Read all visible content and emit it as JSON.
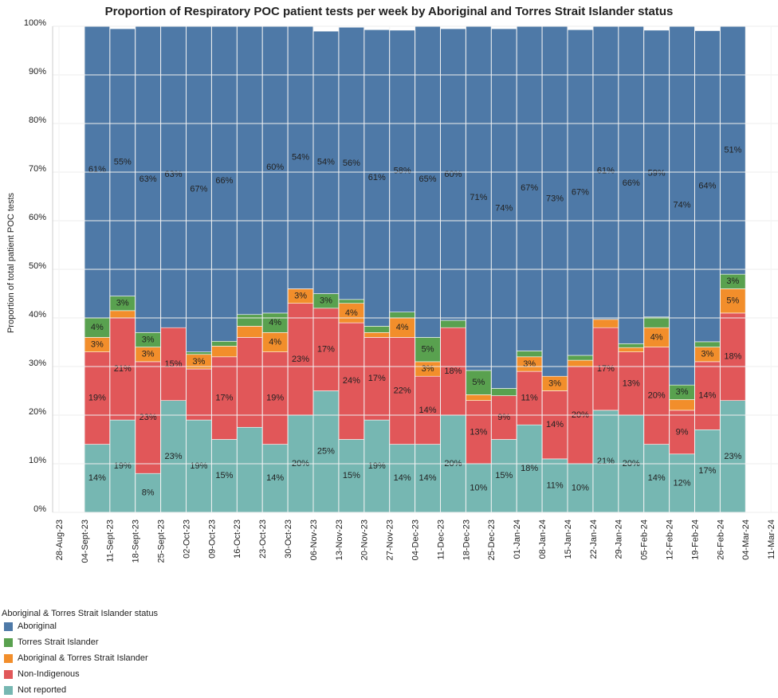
{
  "chart_data": {
    "type": "stacked-bar",
    "title": "Proportion of Respiratory POC patient tests per week by Aboriginal and Torres Strait Islander status",
    "y_label": "Proportion of total patient POC tests",
    "legend_title": "Aboriginal & Torres Strait Islander status",
    "x": [
      "28-Aug-23",
      "04-Sept-23",
      "11-Sept-23",
      "18-Sept-23",
      "25-Sept-23",
      "02-Oct-23",
      "09-Oct-23",
      "16-Oct-23",
      "23-Oct-23",
      "30-Oct-23",
      "06-Nov-23",
      "13-Nov-23",
      "20-Nov-23",
      "27-Nov-23",
      "04-Dec-23",
      "11-Dec-23",
      "18-Dec-23",
      "25-Dec-23",
      "01-Jan-24",
      "08-Jan-24",
      "15-Jan-24",
      "22-Jan-24",
      "29-Jan-24",
      "05-Feb-24",
      "12-Feb-24",
      "19-Feb-24",
      "26-Feb-24",
      "04-Mar-24",
      "11-Mar-24"
    ],
    "ylim": [
      0,
      100
    ],
    "yticks": [
      {
        "value": 0,
        "label": "0%"
      },
      {
        "value": 10,
        "label": "10%"
      },
      {
        "value": 20,
        "label": "20%"
      },
      {
        "value": 30,
        "label": "30%"
      },
      {
        "value": 40,
        "label": "40%"
      },
      {
        "value": 50,
        "label": "50%"
      },
      {
        "value": 60,
        "label": "60%"
      },
      {
        "value": 70,
        "label": "70%"
      },
      {
        "value": 80,
        "label": "80%"
      },
      {
        "value": 90,
        "label": "90%"
      },
      {
        "value": 100,
        "label": "100%"
      }
    ],
    "grid": true,
    "series": [
      {
        "name": "Aboriginal",
        "color": "#4e79a7",
        "values": [
          null,
          61,
          55,
          63,
          63,
          67,
          66,
          59.3,
          60,
          54,
          54,
          56,
          61,
          58,
          65,
          60,
          71,
          74,
          67,
          73,
          67,
          61,
          66,
          59,
          74,
          64,
          51,
          null,
          null
        ],
        "value_labels": [
          null,
          "61%",
          "55%",
          "63%",
          "63%",
          "67%",
          "66%",
          null,
          "60%",
          "54%",
          "54%",
          "56%",
          "61%",
          "58%",
          "65%",
          "60%",
          "71%",
          "74%",
          "67%",
          "73%",
          "67%",
          "61%",
          "66%",
          "59%",
          "74%",
          "64%",
          "51%",
          null,
          null
        ]
      },
      {
        "name": "Torres Strait Islander",
        "color": "#59a14f",
        "values": [
          null,
          4,
          3,
          3,
          0,
          0.5,
          1,
          2.4,
          4,
          0,
          3,
          0.8,
          1.3,
          1.2,
          5,
          1.5,
          5,
          1.5,
          1.2,
          0,
          1,
          0,
          0.8,
          2.2,
          3,
          1.1,
          3,
          null,
          null
        ],
        "value_labels": [
          null,
          "4%",
          "3%",
          "3%",
          null,
          null,
          null,
          null,
          "4%",
          null,
          "3%",
          null,
          null,
          null,
          "5%",
          null,
          "5%",
          null,
          null,
          null,
          null,
          null,
          null,
          null,
          "3%",
          null,
          "3%",
          null,
          null
        ]
      },
      {
        "name": "Aboriginal & Torres Strait Islander",
        "color": "#f28e2b",
        "values": [
          null,
          3,
          1.5,
          3,
          0,
          3,
          2.2,
          2.3,
          4,
          3,
          0,
          4,
          1,
          4,
          3,
          0,
          1.2,
          0,
          3,
          3,
          1.3,
          1.7,
          0.9,
          4,
          2.2,
          3,
          5,
          null,
          null
        ],
        "value_labels": [
          null,
          "3%",
          null,
          "3%",
          null,
          "3%",
          null,
          null,
          "4%",
          "3%",
          null,
          "4%",
          null,
          "4%",
          "3%",
          null,
          null,
          null,
          "3%",
          "3%",
          null,
          null,
          null,
          "4%",
          null,
          "3%",
          "5%",
          null,
          null
        ]
      },
      {
        "name": "Non-Indigenous",
        "color": "#e15759",
        "values": [
          null,
          19,
          21,
          23,
          15,
          10.5,
          17,
          18.5,
          19,
          23,
          17,
          24,
          17,
          22,
          14,
          18,
          13,
          9,
          11,
          14,
          20,
          17,
          13,
          20,
          9,
          14,
          18,
          null,
          null
        ],
        "value_labels": [
          null,
          "19%",
          "21%",
          "23%",
          "15%",
          null,
          "17%",
          null,
          "19%",
          "23%",
          "17%",
          "24%",
          "17%",
          "22%",
          "14%",
          "18%",
          "13%",
          "9%",
          "11%",
          "14%",
          "20%",
          "17%",
          "13%",
          "20%",
          "9%",
          "14%",
          "18%",
          null,
          null
        ]
      },
      {
        "name": "Not reported",
        "color": "#76b7b2",
        "values": [
          null,
          14,
          19,
          8,
          23,
          19,
          15,
          17.5,
          14,
          20,
          25,
          15,
          19,
          14,
          14,
          20,
          10,
          15,
          18,
          11,
          10,
          21,
          20,
          14,
          12,
          17,
          23,
          null,
          null
        ],
        "value_labels": [
          null,
          "14%",
          "19%",
          "8%",
          "23%",
          "19%",
          "15%",
          null,
          "14%",
          "20%",
          "25%",
          "15%",
          "19%",
          "14%",
          "14%",
          "20%",
          "10%",
          "15%",
          "18%",
          "11%",
          "10%",
          "21%",
          "20%",
          "14%",
          "12%",
          "17%",
          "23%",
          null,
          null
        ]
      }
    ]
  }
}
